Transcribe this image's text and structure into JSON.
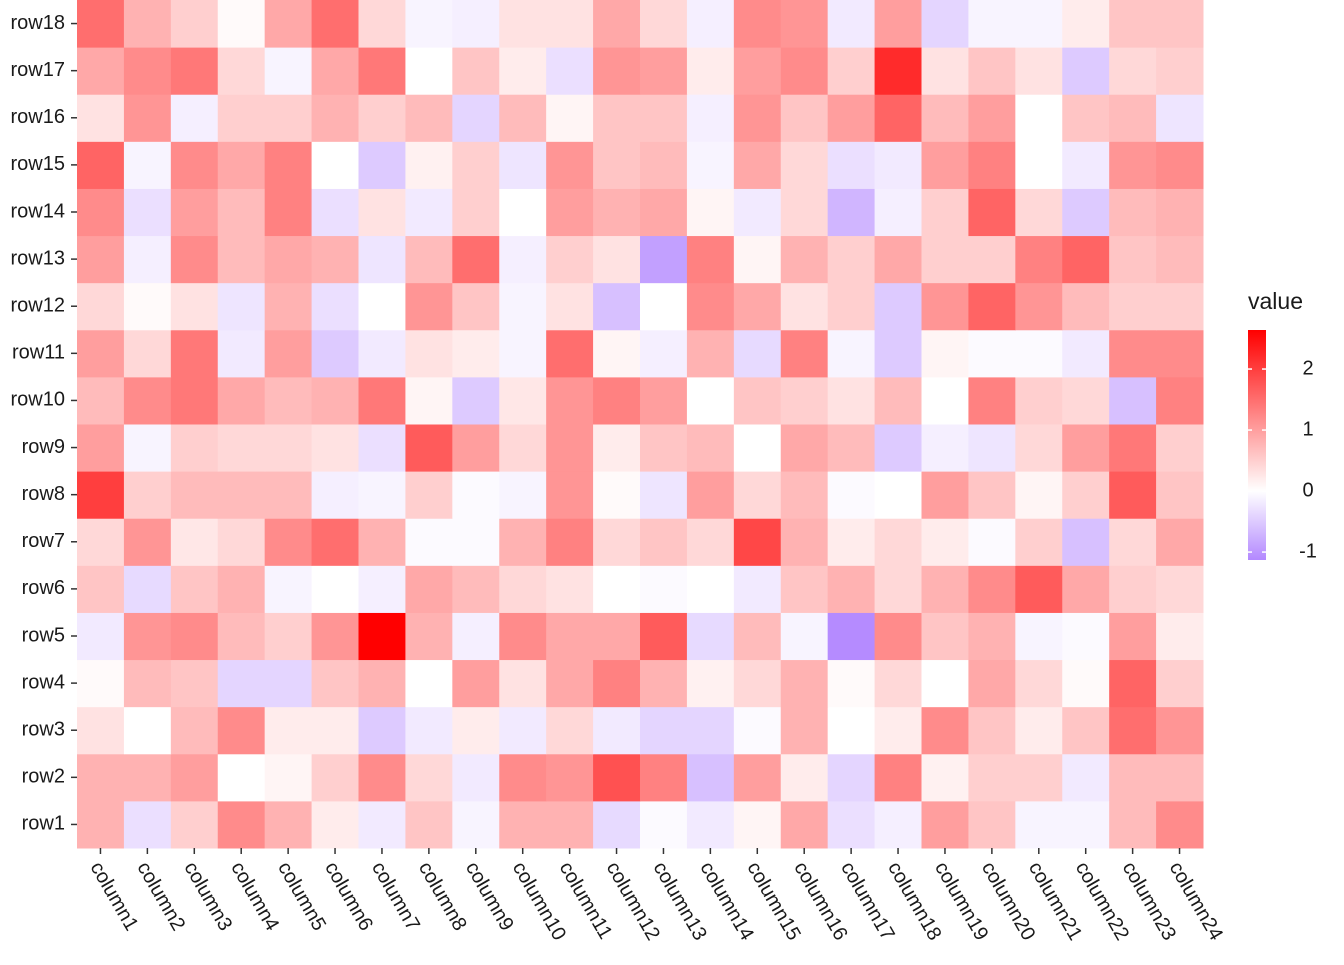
{
  "chart_data": {
    "type": "heatmap",
    "x": [
      "column1",
      "column2",
      "column3",
      "column4",
      "column5",
      "column6",
      "column7",
      "column8",
      "column9",
      "column10",
      "column11",
      "column12",
      "column13",
      "column14",
      "column15",
      "column16",
      "column17",
      "column18",
      "column19",
      "column20",
      "column21",
      "column22",
      "column23",
      "column24"
    ],
    "y": [
      "row1",
      "row2",
      "row3",
      "row4",
      "row5",
      "row6",
      "row7",
      "row8",
      "row9",
      "row10",
      "row11",
      "row12",
      "row13",
      "row14",
      "row15",
      "row16",
      "row17",
      "row18"
    ],
    "values": [
      [
        0.8,
        -0.3,
        0.5,
        1.2,
        0.8,
        0.2,
        -0.2,
        0.6,
        -0.1,
        0.8,
        0.8,
        -0.35,
        -0.05,
        -0.2,
        0.1,
        0.9,
        -0.3,
        -0.15,
        1.0,
        0.6,
        -0.1,
        -0.1,
        0.7,
        1.2
      ],
      [
        0.8,
        0.8,
        1.0,
        0.0,
        0.1,
        0.5,
        1.2,
        0.4,
        -0.2,
        1.2,
        1.1,
        1.8,
        1.3,
        -0.6,
        1.0,
        0.2,
        -0.4,
        1.3,
        0.15,
        0.5,
        0.5,
        -0.2,
        0.7,
        0.7
      ],
      [
        0.3,
        0.0,
        0.7,
        1.2,
        0.2,
        0.2,
        -0.5,
        -0.2,
        0.2,
        -0.2,
        0.4,
        -0.2,
        -0.4,
        -0.4,
        -0.05,
        0.8,
        0.0,
        0.2,
        1.2,
        0.6,
        0.2,
        0.6,
        1.5,
        1.1
      ],
      [
        0.05,
        0.7,
        0.6,
        -0.4,
        -0.4,
        0.6,
        0.8,
        0.0,
        1.0,
        0.3,
        0.9,
        1.3,
        0.8,
        0.15,
        0.4,
        0.8,
        0.05,
        0.4,
        0.0,
        0.9,
        0.4,
        0.05,
        1.6,
        0.5
      ],
      [
        -0.2,
        1.1,
        1.2,
        0.7,
        0.5,
        1.1,
        2.64,
        0.8,
        -0.15,
        1.2,
        0.9,
        0.9,
        1.7,
        -0.35,
        0.7,
        -0.1,
        -1.1,
        1.2,
        0.6,
        0.8,
        -0.1,
        -0.05,
        1.0,
        0.2
      ],
      [
        0.6,
        -0.35,
        0.6,
        0.8,
        -0.1,
        0.0,
        -0.15,
        0.9,
        0.7,
        0.4,
        0.3,
        0.0,
        -0.05,
        0.0,
        -0.2,
        0.6,
        0.8,
        0.4,
        0.8,
        1.2,
        1.7,
        0.9,
        0.5,
        0.4
      ],
      [
        0.4,
        1.1,
        0.25,
        0.4,
        1.2,
        1.5,
        0.8,
        -0.05,
        -0.05,
        0.8,
        1.3,
        0.4,
        0.6,
        0.4,
        1.9,
        0.8,
        0.2,
        0.4,
        0.2,
        -0.05,
        0.5,
        -0.6,
        0.4,
        0.9
      ],
      [
        2.0,
        0.5,
        0.7,
        0.7,
        0.7,
        -0.15,
        -0.1,
        0.5,
        -0.05,
        -0.1,
        1.1,
        0.05,
        -0.25,
        1.0,
        0.4,
        0.7,
        -0.05,
        0.0,
        1.0,
        0.6,
        0.1,
        0.5,
        1.7,
        0.6
      ],
      [
        1.0,
        -0.1,
        0.5,
        0.4,
        0.4,
        0.3,
        -0.3,
        1.7,
        1.0,
        0.4,
        1.1,
        0.2,
        0.6,
        0.7,
        0.0,
        0.9,
        0.7,
        -0.5,
        -0.15,
        -0.25,
        0.4,
        1.0,
        1.4,
        0.5
      ],
      [
        0.7,
        1.2,
        1.4,
        0.9,
        0.7,
        0.8,
        1.4,
        0.1,
        -0.5,
        0.25,
        1.1,
        1.3,
        1.0,
        0.0,
        0.6,
        0.5,
        0.3,
        0.7,
        0.0,
        1.3,
        0.5,
        0.4,
        -0.6,
        1.3
      ],
      [
        1.0,
        0.4,
        1.4,
        -0.2,
        1.0,
        -0.5,
        -0.2,
        0.3,
        0.2,
        -0.1,
        1.5,
        0.1,
        -0.15,
        0.8,
        -0.35,
        1.3,
        -0.1,
        -0.5,
        0.1,
        -0.05,
        -0.05,
        -0.2,
        1.2,
        1.2
      ],
      [
        0.4,
        0.05,
        0.3,
        -0.25,
        0.8,
        -0.3,
        0.0,
        1.1,
        0.6,
        -0.1,
        0.3,
        -0.6,
        0.0,
        1.2,
        0.9,
        0.3,
        0.5,
        -0.5,
        1.1,
        1.6,
        1.1,
        0.7,
        0.5,
        0.5
      ],
      [
        1.0,
        -0.15,
        1.2,
        0.7,
        0.9,
        0.8,
        -0.25,
        0.7,
        1.5,
        -0.15,
        0.5,
        0.3,
        -0.9,
        1.3,
        0.1,
        0.8,
        0.5,
        0.9,
        0.5,
        0.5,
        1.3,
        1.6,
        0.6,
        0.7
      ],
      [
        1.2,
        -0.3,
        1.0,
        0.7,
        1.3,
        -0.3,
        0.3,
        -0.2,
        0.5,
        0.0,
        1.0,
        0.8,
        0.9,
        0.1,
        -0.2,
        0.4,
        -0.7,
        -0.15,
        0.5,
        1.6,
        0.4,
        -0.5,
        0.7,
        0.8
      ],
      [
        1.6,
        -0.1,
        1.2,
        0.9,
        1.3,
        0.0,
        -0.5,
        0.15,
        0.5,
        -0.25,
        1.1,
        0.6,
        0.7,
        -0.1,
        0.9,
        0.4,
        -0.3,
        -0.2,
        1.0,
        1.3,
        0.0,
        -0.2,
        1.1,
        1.2
      ],
      [
        0.3,
        1.1,
        -0.15,
        0.5,
        0.5,
        0.8,
        0.5,
        0.7,
        -0.4,
        0.7,
        0.1,
        0.6,
        0.6,
        -0.15,
        1.1,
        0.6,
        1.0,
        1.6,
        0.7,
        1.0,
        0.0,
        0.6,
        0.7,
        -0.25
      ],
      [
        0.9,
        1.2,
        1.4,
        0.4,
        -0.1,
        0.9,
        1.4,
        0.0,
        0.6,
        0.2,
        -0.3,
        1.1,
        1.0,
        0.2,
        1.0,
        1.2,
        0.5,
        2.2,
        0.3,
        0.6,
        0.3,
        -0.5,
        0.4,
        0.5
      ],
      [
        1.5,
        0.8,
        0.5,
        0.05,
        0.9,
        1.5,
        0.4,
        -0.1,
        -0.15,
        0.3,
        0.3,
        0.9,
        0.4,
        -0.15,
        1.2,
        1.1,
        -0.2,
        1.0,
        -0.4,
        -0.1,
        -0.1,
        0.2,
        0.6,
        0.6
      ]
    ],
    "legend_title": "value",
    "colorlim": [
      -1.13,
      2.64
    ],
    "colorticks": [
      -1,
      0,
      1,
      2
    ],
    "low_color": "#b388ff",
    "mid_color": "#ffffff",
    "high_color": "#ff0000",
    "midpoint": 0
  }
}
